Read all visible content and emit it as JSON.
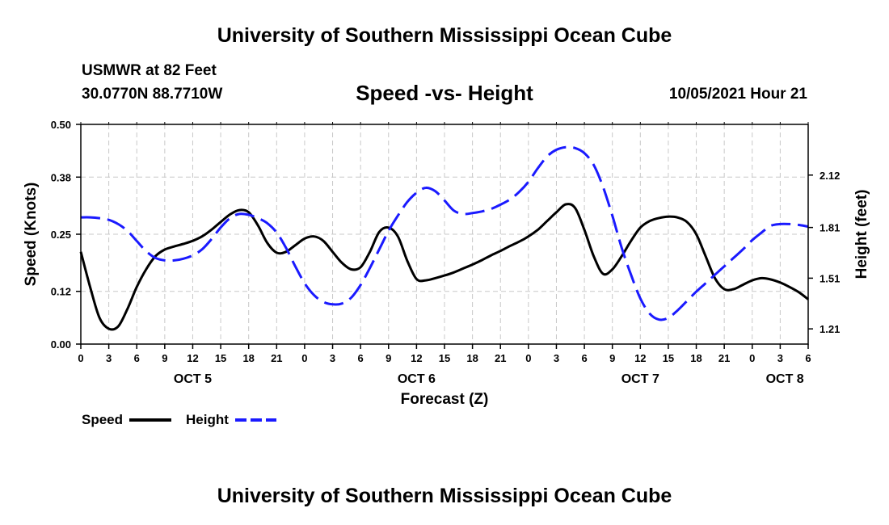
{
  "page": {
    "title_top": "University of Southern Mississippi Ocean Cube",
    "title_bottom": "University of Southern Mississippi Ocean Cube",
    "station_line1": "USMWR at 82 Feet",
    "station_line2": "30.0770N  88.7710W",
    "chart_heading": "Speed -vs- Height",
    "datetime": "10/05/2021 Hour 21"
  },
  "chart_data": {
    "type": "line",
    "title": "Speed -vs- Height",
    "xlabel": "Forecast (Z)",
    "ylabel": "Speed (Knots)",
    "y2label": "Height (feet)",
    "x_range_hours": [
      0,
      78
    ],
    "ylim": [
      0,
      0.5
    ],
    "y2lim": [
      1.12,
      2.42
    ],
    "y_ticks": [
      0.0,
      0.12,
      0.25,
      0.38,
      0.5
    ],
    "y_tick_labels": [
      "0.00",
      "0.12",
      "0.25",
      "0.38",
      "0.50"
    ],
    "y2_ticks": [
      1.21,
      1.51,
      1.81,
      2.12
    ],
    "y2_tick_labels": [
      "1.21",
      "1.51",
      "1.81",
      "2.12"
    ],
    "x_ticks_hours": [
      0,
      3,
      6,
      9,
      12,
      15,
      18,
      21,
      24,
      27,
      30,
      33,
      36,
      39,
      42,
      45,
      48,
      51,
      54,
      57,
      60,
      63,
      66,
      69,
      72,
      75,
      78
    ],
    "x_tick_labels": [
      "0",
      "3",
      "6",
      "9",
      "12",
      "15",
      "18",
      "21",
      "0",
      "3",
      "6",
      "9",
      "12",
      "15",
      "18",
      "21",
      "0",
      "3",
      "6",
      "9",
      "12",
      "15",
      "18",
      "21",
      "0",
      "3",
      "6"
    ],
    "day_labels": [
      {
        "label": "OCT 5",
        "hour": 12
      },
      {
        "label": "OCT 6",
        "hour": 36
      },
      {
        "label": "OCT 7",
        "hour": 60
      },
      {
        "label": "OCT 8",
        "hour": 75.5
      }
    ],
    "grid": true,
    "legend_position": "bottom-left",
    "series": [
      {
        "name": "Speed",
        "legend_label": "Speed",
        "axis": "left",
        "color": "#000000",
        "style": "solid",
        "hours": [
          0,
          1,
          2,
          3,
          4,
          5,
          6,
          7,
          8,
          9,
          10,
          11,
          12,
          13,
          14,
          15,
          16,
          17,
          18,
          19,
          20,
          21,
          22,
          23,
          24,
          25,
          26,
          27,
          28,
          29,
          30,
          31,
          32,
          33,
          34,
          35,
          36,
          37,
          38,
          39,
          40,
          41,
          42,
          43,
          44,
          45,
          46,
          47,
          48,
          49,
          50,
          51,
          52,
          53,
          54,
          55,
          56,
          57,
          58,
          59,
          60,
          61,
          62,
          63,
          64,
          65,
          66,
          67,
          68,
          69,
          70,
          71,
          72,
          73,
          74,
          75,
          76,
          77,
          78
        ],
        "values": [
          0.21,
          0.13,
          0.06,
          0.035,
          0.04,
          0.08,
          0.13,
          0.17,
          0.2,
          0.215,
          0.222,
          0.228,
          0.235,
          0.245,
          0.26,
          0.278,
          0.295,
          0.305,
          0.3,
          0.27,
          0.23,
          0.208,
          0.21,
          0.225,
          0.24,
          0.245,
          0.235,
          0.21,
          0.185,
          0.17,
          0.175,
          0.21,
          0.255,
          0.265,
          0.245,
          0.19,
          0.148,
          0.145,
          0.15,
          0.156,
          0.163,
          0.172,
          0.181,
          0.191,
          0.202,
          0.212,
          0.223,
          0.233,
          0.245,
          0.26,
          0.28,
          0.3,
          0.318,
          0.31,
          0.26,
          0.2,
          0.16,
          0.17,
          0.2,
          0.235,
          0.265,
          0.28,
          0.287,
          0.29,
          0.288,
          0.278,
          0.25,
          0.2,
          0.15,
          0.125,
          0.125,
          0.135,
          0.145,
          0.15,
          0.147,
          0.14,
          0.13,
          0.118,
          0.102
        ]
      },
      {
        "name": "Height",
        "legend_label": "Height",
        "axis": "right",
        "color": "#1a1aff",
        "style": "dashed",
        "hours": [
          0,
          1,
          2,
          3,
          4,
          5,
          6,
          7,
          8,
          9,
          10,
          11,
          12,
          13,
          14,
          15,
          16,
          17,
          18,
          19,
          20,
          21,
          22,
          23,
          24,
          25,
          26,
          27,
          28,
          29,
          30,
          31,
          32,
          33,
          34,
          35,
          36,
          37,
          38,
          39,
          40,
          41,
          42,
          43,
          44,
          45,
          46,
          47,
          48,
          49,
          50,
          51,
          52,
          53,
          54,
          55,
          56,
          57,
          58,
          59,
          60,
          61,
          62,
          63,
          64,
          65,
          66,
          67,
          68,
          69,
          70,
          71,
          72,
          73,
          74,
          75,
          76,
          77,
          78
        ],
        "values": [
          1.87,
          1.87,
          1.865,
          1.855,
          1.83,
          1.79,
          1.73,
          1.67,
          1.63,
          1.615,
          1.615,
          1.625,
          1.645,
          1.68,
          1.74,
          1.81,
          1.865,
          1.89,
          1.885,
          1.865,
          1.835,
          1.78,
          1.69,
          1.58,
          1.48,
          1.41,
          1.37,
          1.355,
          1.36,
          1.395,
          1.47,
          1.57,
          1.68,
          1.79,
          1.88,
          1.96,
          2.015,
          2.045,
          2.025,
          1.97,
          1.91,
          1.89,
          1.895,
          1.905,
          1.92,
          1.945,
          1.975,
          2.02,
          2.08,
          2.16,
          2.23,
          2.27,
          2.285,
          2.28,
          2.25,
          2.18,
          2.05,
          1.88,
          1.69,
          1.53,
          1.39,
          1.3,
          1.265,
          1.275,
          1.32,
          1.375,
          1.43,
          1.48,
          1.53,
          1.58,
          1.63,
          1.68,
          1.735,
          1.78,
          1.82,
          1.83,
          1.83,
          1.825,
          1.815
        ]
      }
    ]
  }
}
